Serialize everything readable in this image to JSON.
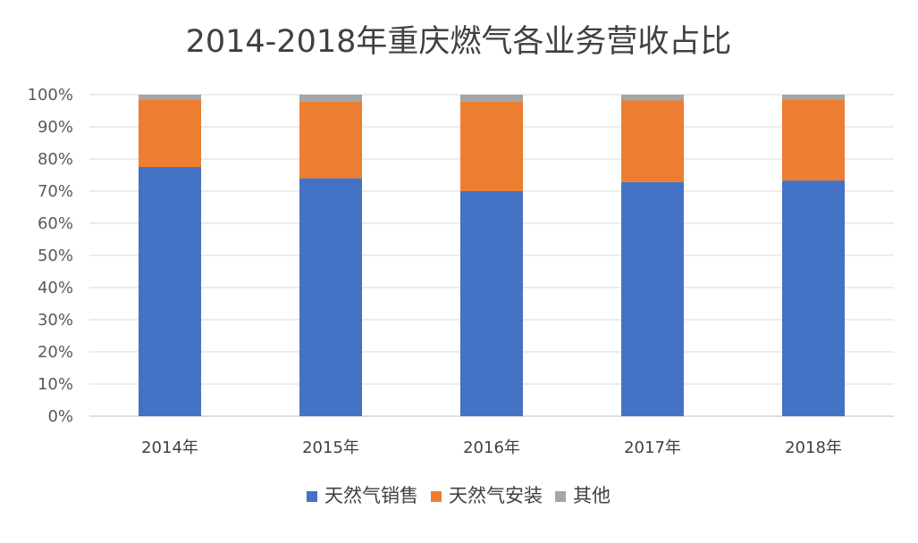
{
  "chart_data": {
    "type": "bar",
    "stacked": true,
    "title": "2014-2018年重庆燃气各业务营收占比",
    "xlabel": "",
    "ylabel": "",
    "categories": [
      "2014年",
      "2015年",
      "2016年",
      "2017年",
      "2018年"
    ],
    "series": [
      {
        "name": "天然气销售",
        "color": "#4472c4",
        "values": [
          77.5,
          74.0,
          70.0,
          72.8,
          73.3
        ]
      },
      {
        "name": "天然气安装",
        "color": "#ed7d31",
        "values": [
          21.0,
          23.8,
          27.8,
          25.4,
          25.2
        ]
      },
      {
        "name": "其他",
        "color": "#a5a5a5",
        "values": [
          1.5,
          2.2,
          2.2,
          1.8,
          1.5
        ]
      }
    ],
    "ylim": [
      0,
      100
    ],
    "y_ticks": [
      "0%",
      "10%",
      "20%",
      "30%",
      "40%",
      "50%",
      "60%",
      "70%",
      "80%",
      "90%",
      "100%"
    ],
    "grid": true,
    "legend_position": "bottom"
  }
}
